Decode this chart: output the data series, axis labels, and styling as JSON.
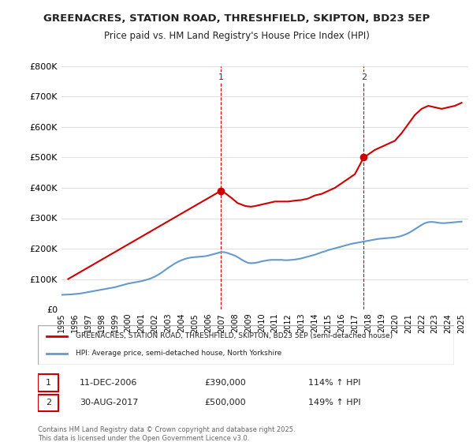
{
  "title": "GREENACRES, STATION ROAD, THRESHFIELD, SKIPTON, BD23 5EP",
  "subtitle": "Price paid vs. HM Land Registry's House Price Index (HPI)",
  "ylabel": "",
  "xlabel": "",
  "ylim": [
    0,
    800000
  ],
  "yticks": [
    0,
    100000,
    200000,
    300000,
    400000,
    500000,
    600000,
    700000,
    800000
  ],
  "ytick_labels": [
    "£0",
    "£100K",
    "£200K",
    "£300K",
    "£400K",
    "£500K",
    "£600K",
    "£700K",
    "£800K"
  ],
  "xlim_start": 1995.0,
  "xlim_end": 2025.5,
  "xticks": [
    1995,
    1996,
    1997,
    1998,
    1999,
    2000,
    2001,
    2002,
    2003,
    2004,
    2005,
    2006,
    2007,
    2008,
    2009,
    2010,
    2011,
    2012,
    2013,
    2014,
    2015,
    2016,
    2017,
    2018,
    2019,
    2020,
    2021,
    2022,
    2023,
    2024,
    2025
  ],
  "background_color": "#ffffff",
  "plot_bg_color": "#ffffff",
  "grid_color": "#e0e0e0",
  "red_color": "#cc0000",
  "blue_color": "#6699cc",
  "transaction1_x": 2006.94,
  "transaction1_y": 390000,
  "transaction1_label": "11-DEC-2006",
  "transaction1_price": "£390,000",
  "transaction1_hpi": "114% ↑ HPI",
  "transaction2_x": 2017.66,
  "transaction2_y": 500000,
  "transaction2_label": "30-AUG-2017",
  "transaction2_price": "£500,000",
  "transaction2_hpi": "149% ↑ HPI",
  "legend_line1": "GREENACRES, STATION ROAD, THRESHFIELD, SKIPTON, BD23 5EP (semi-detached house)",
  "legend_line2": "HPI: Average price, semi-detached house, North Yorkshire",
  "footer": "Contains HM Land Registry data © Crown copyright and database right 2025.\nThis data is licensed under the Open Government Licence v3.0.",
  "hpi_data_x": [
    1995.0,
    1995.25,
    1995.5,
    1995.75,
    1996.0,
    1996.25,
    1996.5,
    1996.75,
    1997.0,
    1997.25,
    1997.5,
    1997.75,
    1998.0,
    1998.25,
    1998.5,
    1998.75,
    1999.0,
    1999.25,
    1999.5,
    1999.75,
    2000.0,
    2000.25,
    2000.5,
    2000.75,
    2001.0,
    2001.25,
    2001.5,
    2001.75,
    2002.0,
    2002.25,
    2002.5,
    2002.75,
    2003.0,
    2003.25,
    2003.5,
    2003.75,
    2004.0,
    2004.25,
    2004.5,
    2004.75,
    2005.0,
    2005.25,
    2005.5,
    2005.75,
    2006.0,
    2006.25,
    2006.5,
    2006.75,
    2007.0,
    2007.25,
    2007.5,
    2007.75,
    2008.0,
    2008.25,
    2008.5,
    2008.75,
    2009.0,
    2009.25,
    2009.5,
    2009.75,
    2010.0,
    2010.25,
    2010.5,
    2010.75,
    2011.0,
    2011.25,
    2011.5,
    2011.75,
    2012.0,
    2012.25,
    2012.5,
    2012.75,
    2013.0,
    2013.25,
    2013.5,
    2013.75,
    2014.0,
    2014.25,
    2014.5,
    2014.75,
    2015.0,
    2015.25,
    2015.5,
    2015.75,
    2016.0,
    2016.25,
    2016.5,
    2016.75,
    2017.0,
    2017.25,
    2017.5,
    2017.75,
    2018.0,
    2018.25,
    2018.5,
    2018.75,
    2019.0,
    2019.25,
    2019.5,
    2019.75,
    2020.0,
    2020.25,
    2020.5,
    2020.75,
    2021.0,
    2021.25,
    2021.5,
    2021.75,
    2022.0,
    2022.25,
    2022.5,
    2022.75,
    2023.0,
    2023.25,
    2023.5,
    2023.75,
    2024.0,
    2024.25,
    2024.5,
    2024.75,
    2025.0
  ],
  "hpi_data_y": [
    48000,
    48500,
    49000,
    49500,
    50500,
    51500,
    53000,
    55000,
    57000,
    59000,
    61000,
    63000,
    65000,
    67000,
    69000,
    71000,
    73000,
    76000,
    79000,
    82000,
    85000,
    87000,
    89000,
    91000,
    93000,
    96000,
    99000,
    103000,
    108000,
    114000,
    121000,
    129000,
    137000,
    144000,
    151000,
    157000,
    162000,
    166000,
    169000,
    171000,
    172000,
    173000,
    174000,
    175000,
    177000,
    180000,
    183000,
    186000,
    189000,
    188000,
    185000,
    181000,
    177000,
    171000,
    164000,
    158000,
    153000,
    152000,
    153000,
    155000,
    158000,
    160000,
    162000,
    163000,
    163000,
    163000,
    163000,
    162000,
    162000,
    163000,
    164000,
    166000,
    168000,
    171000,
    174000,
    177000,
    180000,
    184000,
    188000,
    191000,
    195000,
    198000,
    201000,
    204000,
    207000,
    210000,
    213000,
    216000,
    218000,
    220000,
    222000,
    224000,
    226000,
    228000,
    230000,
    232000,
    233000,
    234000,
    235000,
    236000,
    237000,
    239000,
    242000,
    246000,
    251000,
    257000,
    264000,
    271000,
    278000,
    284000,
    287000,
    288000,
    287000,
    285000,
    284000,
    284000,
    285000,
    286000,
    287000,
    288000,
    289000
  ],
  "property_data_x": [
    1995.5,
    2006.94,
    2007.2,
    2007.5,
    2007.8,
    2008.2,
    2008.5,
    2008.8,
    2009.2,
    2009.5,
    2010.0,
    2010.5,
    2011.0,
    2011.5,
    2012.0,
    2012.5,
    2013.0,
    2013.5,
    2014.0,
    2014.5,
    2015.0,
    2015.5,
    2016.0,
    2016.5,
    2017.0,
    2017.66,
    2018.0,
    2018.5,
    2019.0,
    2019.5,
    2020.0,
    2020.5,
    2021.0,
    2021.5,
    2022.0,
    2022.5,
    2023.0,
    2023.5,
    2024.0,
    2024.5,
    2025.0
  ],
  "property_data_y": [
    100000,
    390000,
    385000,
    375000,
    365000,
    350000,
    345000,
    340000,
    338000,
    340000,
    345000,
    350000,
    355000,
    355000,
    355000,
    358000,
    360000,
    365000,
    375000,
    380000,
    390000,
    400000,
    415000,
    430000,
    445000,
    500000,
    510000,
    525000,
    535000,
    545000,
    555000,
    580000,
    610000,
    640000,
    660000,
    670000,
    665000,
    660000,
    665000,
    670000,
    680000
  ]
}
